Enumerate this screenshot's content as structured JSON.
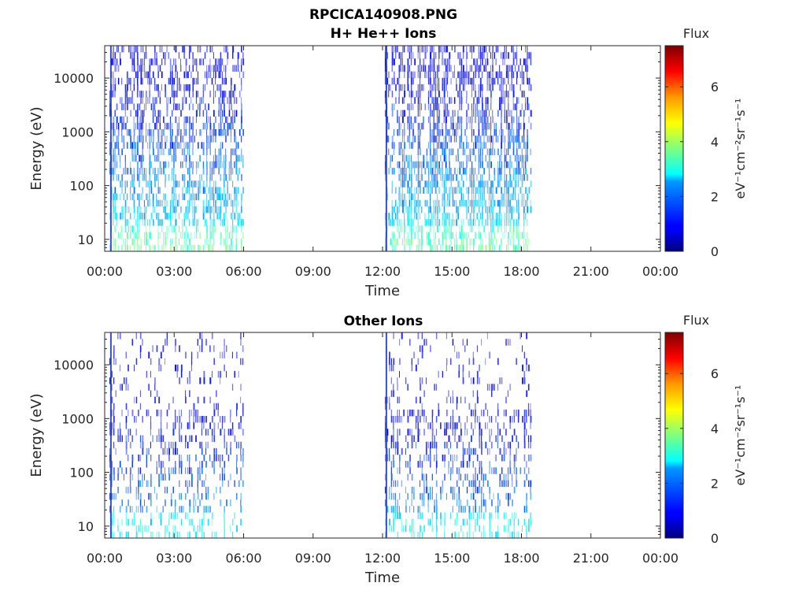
{
  "figure_title": "RPCICA140908.PNG",
  "chart_data": [
    {
      "type": "heatmap",
      "title": "H+ He++ Ions",
      "xlabel": "Time",
      "ylabel": "Energy (eV)",
      "yscale": "log",
      "ylim": [
        6,
        40000
      ],
      "xticks": [
        "00:00",
        "03:00",
        "06:00",
        "09:00",
        "12:00",
        "15:00",
        "18:00",
        "21:00",
        "00:00"
      ],
      "yticks": [
        {
          "value": 10,
          "label": "10"
        },
        {
          "value": 100,
          "label": "100"
        },
        {
          "value": 1000,
          "label": "1000"
        },
        {
          "value": 10000,
          "label": "10000"
        }
      ],
      "data_intervals_hours": [
        [
          0.2,
          6.0
        ],
        [
          12.1,
          18.4
        ]
      ],
      "colorbar": {
        "title": "Flux",
        "unit": "eV⁻¹cm⁻²sr⁻¹s⁻¹",
        "range": [
          0,
          7.5
        ],
        "ticks": [
          "0",
          "2",
          "4",
          "6"
        ],
        "colormap": "jet"
      }
    },
    {
      "type": "heatmap",
      "title": "Other Ions",
      "xlabel": "Time",
      "ylabel": "Energy (eV)",
      "yscale": "log",
      "ylim": [
        6,
        40000
      ],
      "xticks": [
        "00:00",
        "03:00",
        "06:00",
        "09:00",
        "12:00",
        "15:00",
        "18:00",
        "21:00",
        "00:00"
      ],
      "yticks": [
        {
          "value": 10,
          "label": "10"
        },
        {
          "value": 100,
          "label": "100"
        },
        {
          "value": 1000,
          "label": "1000"
        },
        {
          "value": 10000,
          "label": "10000"
        }
      ],
      "data_intervals_hours": [
        [
          0.2,
          6.0
        ],
        [
          12.1,
          18.4
        ]
      ],
      "colorbar": {
        "title": "Flux",
        "unit": "eV⁻¹cm⁻²sr⁻¹s⁻¹",
        "range": [
          0,
          7.5
        ],
        "ticks": [
          "0",
          "2",
          "4",
          "6"
        ],
        "colormap": "jet"
      }
    }
  ]
}
